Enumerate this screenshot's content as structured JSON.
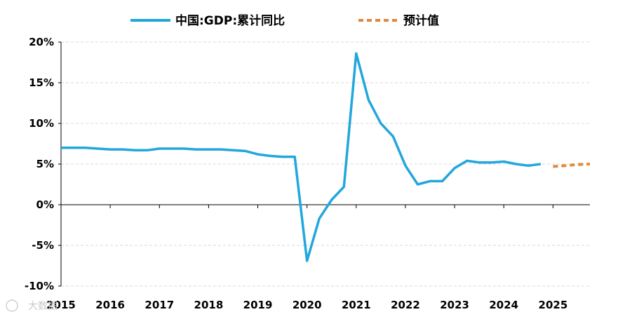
{
  "chart_data": {
    "type": "line",
    "title": "",
    "xlabel": "",
    "ylabel": "",
    "ylim": [
      -10,
      20
    ],
    "yticks": [
      -10,
      -5,
      0,
      5,
      10,
      15,
      20
    ],
    "ytick_labels": [
      "-10%",
      "-5%",
      "0%",
      "5%",
      "10%",
      "15%",
      "20%"
    ],
    "xlim": [
      2015,
      2025.75
    ],
    "xticks": [
      2015,
      2016,
      2017,
      2018,
      2019,
      2020,
      2021,
      2022,
      2023,
      2024,
      2025
    ],
    "xtick_labels": [
      "2015",
      "2016",
      "2017",
      "2018",
      "2019",
      "2020",
      "2021",
      "2022",
      "2023",
      "2024",
      "2025"
    ],
    "grid": "horizontal-dashed",
    "legend_position": "top",
    "series": [
      {
        "name": "中国:GDP:累计同比",
        "color": "#22a7dc",
        "style": "solid",
        "x": [
          2015.0,
          2015.25,
          2015.5,
          2015.75,
          2016.0,
          2016.25,
          2016.5,
          2016.75,
          2017.0,
          2017.25,
          2017.5,
          2017.75,
          2018.0,
          2018.25,
          2018.5,
          2018.75,
          2019.0,
          2019.25,
          2019.5,
          2019.75,
          2020.0,
          2020.25,
          2020.5,
          2020.75,
          2021.0,
          2021.25,
          2021.5,
          2021.75,
          2022.0,
          2022.25,
          2022.5,
          2022.75,
          2023.0,
          2023.25,
          2023.5,
          2023.75,
          2024.0,
          2024.25,
          2024.5,
          2024.75
        ],
        "values": [
          7.0,
          7.0,
          7.0,
          6.9,
          6.8,
          6.8,
          6.7,
          6.7,
          6.9,
          6.9,
          6.9,
          6.8,
          6.8,
          6.8,
          6.7,
          6.6,
          6.2,
          6.0,
          5.9,
          5.9,
          -6.9,
          -1.7,
          0.6,
          2.2,
          18.6,
          12.9,
          10.0,
          8.4,
          4.8,
          2.5,
          2.9,
          2.9,
          4.5,
          5.4,
          5.2,
          5.2,
          5.3,
          5.0,
          4.8,
          5.0
        ]
      },
      {
        "name": "预计值",
        "color": "#e0893a",
        "style": "dashed",
        "x": [
          2025.0,
          2025.25,
          2025.5,
          2025.75
        ],
        "values": [
          4.7,
          4.8,
          4.95,
          5.0
        ]
      }
    ]
  },
  "watermark": "大数据"
}
